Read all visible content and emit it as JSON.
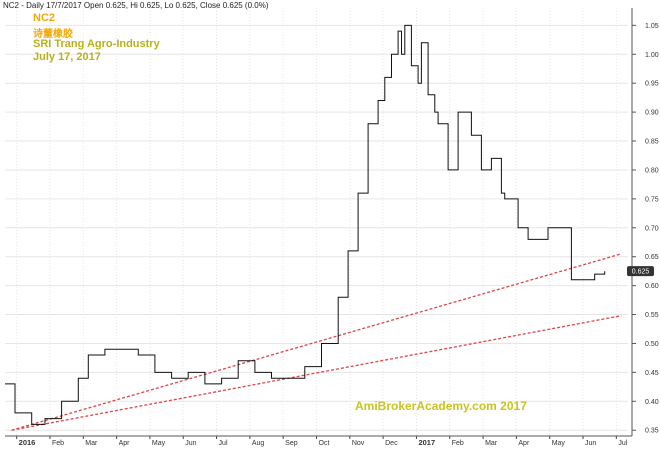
{
  "header": {
    "info": "NC2 - Daily 17/7/2017 Open 0.625, Hi 0.625, Lo 0.625, Close 0.625 (0.0%)"
  },
  "annotations": {
    "ticker": "NC2",
    "chinese_name": "诗董橡胶",
    "company": "SRI Trang Agro-Industry",
    "date": "July 17, 2017",
    "watermark": "AmiBrokerAcademy.com 2017"
  },
  "colors": {
    "price_line": "#111111",
    "trendline": "#e04545",
    "grid": "#e6e6e6",
    "last_price_bg": "#333333",
    "annotation_orange": "#f2a80c",
    "annotation_olive": "#b8b21a"
  },
  "chart_data": {
    "type": "line",
    "title": "NC2",
    "last_price_label": "0.625",
    "ylim": [
      0.34,
      1.08
    ],
    "y_ticks": [
      "0.35",
      "0.40",
      "0.45",
      "0.50",
      "0.55",
      "0.60",
      "0.65",
      "0.70",
      "0.75",
      "0.80",
      "0.85",
      "0.90",
      "0.95",
      "1.00",
      "1.05"
    ],
    "x_ticks": [
      "2016",
      "Feb",
      "Mar",
      "Apr",
      "May",
      "Jun",
      "Jul",
      "Aug",
      "Sep",
      "Oct",
      "Nov",
      "Dec",
      "2017",
      "Feb",
      "Mar",
      "Apr",
      "May",
      "Jun",
      "Jul"
    ],
    "x_ticks_bold": [
      "2016",
      "2017"
    ],
    "grid": true,
    "series": [
      {
        "x": [
          0,
          0.3,
          0.8,
          1.2,
          1.7,
          2.2,
          2.5,
          3.0,
          3.5,
          4.0,
          4.5,
          5.0,
          5.5,
          6.0,
          6.5,
          7.0,
          7.5,
          8.0,
          8.5,
          9.0,
          9.5,
          10.0,
          10.3,
          10.6,
          10.9,
          11.2,
          11.4,
          11.6,
          11.8,
          11.9,
          12.0,
          12.2,
          12.4,
          12.5,
          12.7,
          12.9,
          13.0,
          13.3,
          13.6,
          14.0,
          14.3,
          14.6,
          14.9,
          15.0,
          15.4,
          15.7,
          16.0,
          16.3,
          16.5,
          16.8,
          17.0,
          17.3,
          17.5,
          17.7,
          18.0
        ],
        "y": [
          0.43,
          0.38,
          0.36,
          0.37,
          0.4,
          0.44,
          0.48,
          0.49,
          0.49,
          0.48,
          0.45,
          0.44,
          0.45,
          0.43,
          0.44,
          0.47,
          0.45,
          0.44,
          0.44,
          0.46,
          0.5,
          0.58,
          0.66,
          0.76,
          0.88,
          0.92,
          0.96,
          1.0,
          1.04,
          1.0,
          1.05,
          0.98,
          0.95,
          1.02,
          0.93,
          0.9,
          0.88,
          0.8,
          0.9,
          0.86,
          0.8,
          0.82,
          0.76,
          0.75,
          0.7,
          0.68,
          0.68,
          0.7,
          0.7,
          0.7,
          0.61,
          0.61,
          0.61,
          0.62,
          0.625
        ]
      }
    ],
    "trendlines": [
      {
        "x": [
          0.2,
          18.5
        ],
        "y": [
          0.35,
          0.655
        ]
      },
      {
        "x": [
          0.2,
          18.5
        ],
        "y": [
          0.35,
          0.548
        ]
      }
    ]
  }
}
